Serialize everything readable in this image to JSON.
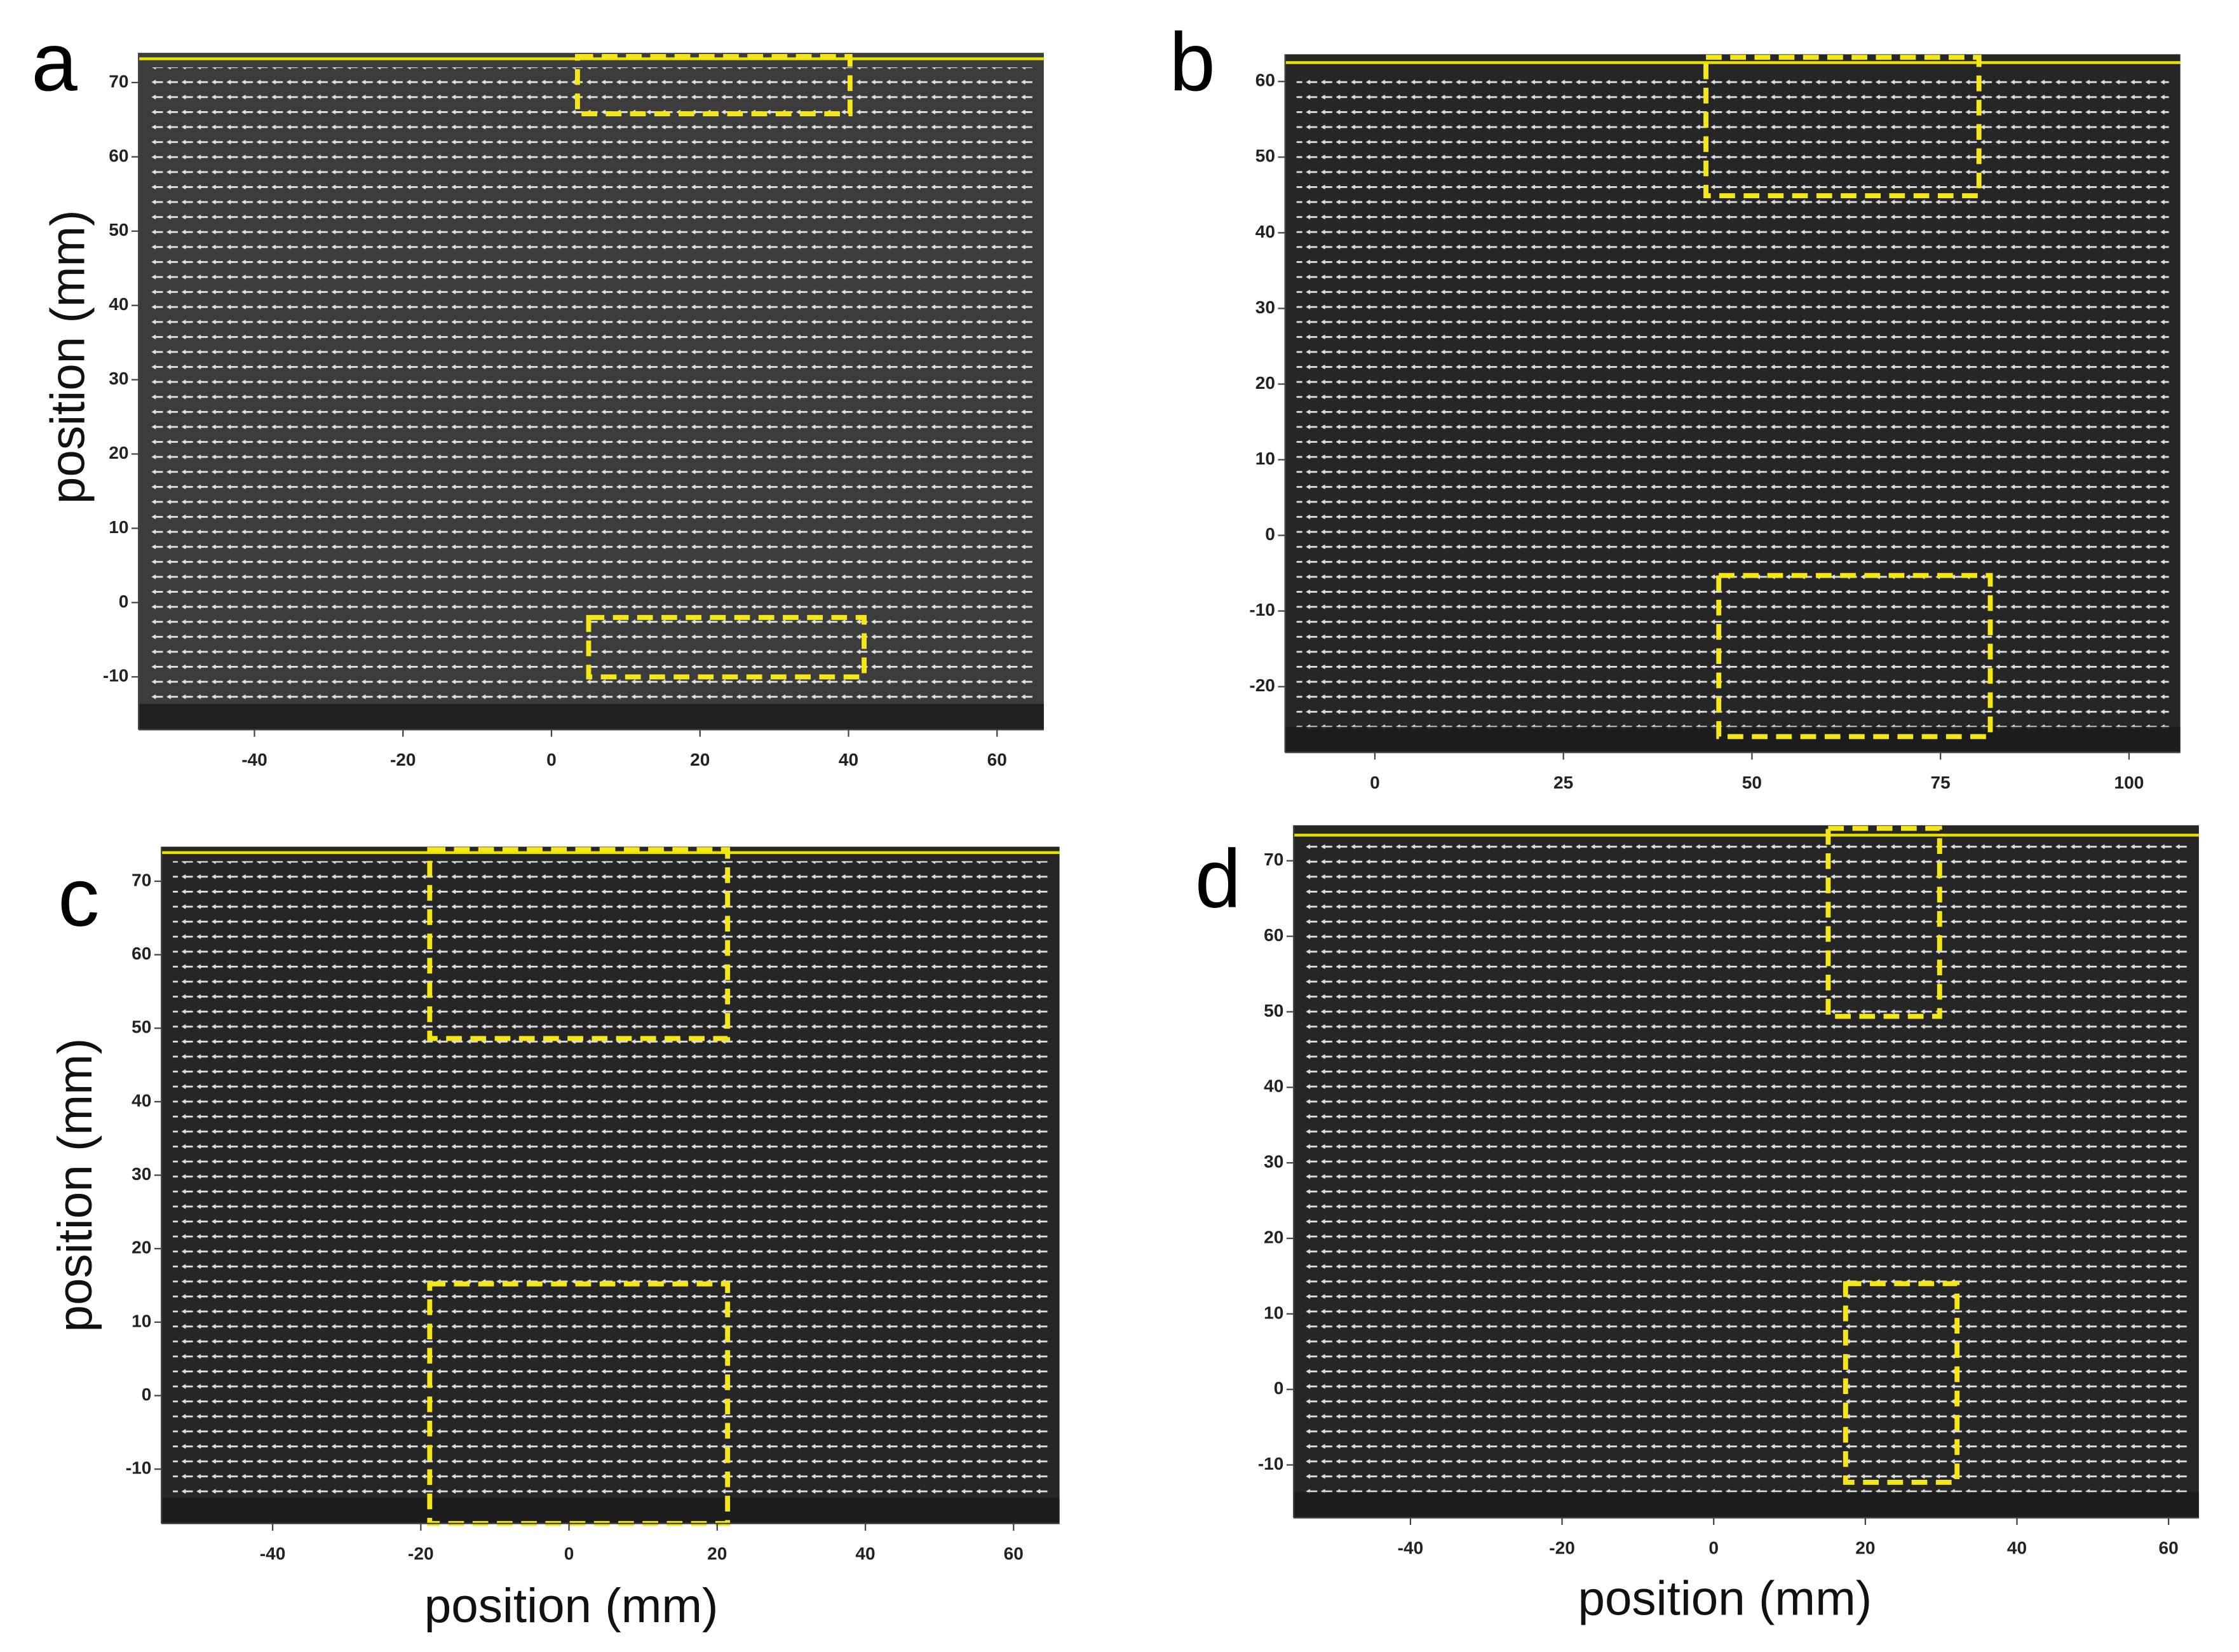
{
  "chart_data": [
    {
      "type": "quiver",
      "panel": "a",
      "ylabel": "position (mm)",
      "xlim": [
        -55.6,
        66.3
      ],
      "ylim": [
        -17.1,
        74
      ],
      "xticks": [
        -40,
        -20,
        0,
        20,
        40,
        60
      ],
      "yticks": [
        -10,
        0,
        10,
        20,
        30,
        40,
        50,
        60,
        70
      ],
      "background": "#3c3c3c",
      "wall_y": 73.2,
      "wall_color": "#e8e000",
      "box_color": "#f5e61a",
      "boxes": [
        {
          "x": [
            3.5,
            40.2
          ],
          "y": [
            65.8,
            73.5
          ]
        },
        {
          "x": [
            5,
            42.1
          ],
          "y": [
            -10,
            -2
          ]
        }
      ]
    },
    {
      "type": "quiver",
      "panel": "b",
      "xlim": [
        -11.9,
        106.8
      ],
      "ylim": [
        -28.7,
        63.6
      ],
      "xticks": [
        0,
        25,
        50,
        75,
        100
      ],
      "yticks": [
        -20,
        -10,
        0,
        10,
        20,
        30,
        40,
        50,
        60
      ],
      "background": "#262626",
      "wall_y": 62.5,
      "wall_color": "#e8e000",
      "box_color": "#f5e61a",
      "boxes": [
        {
          "x": [
            43.9,
            80.1
          ],
          "y": [
            44.9,
            63.2
          ]
        },
        {
          "x": [
            45.6,
            81.6
          ],
          "y": [
            -26.6,
            -5.3
          ]
        }
      ]
    },
    {
      "type": "quiver",
      "panel": "c",
      "ylabel": "position (mm)",
      "xlabel": "position (mm)",
      "xlim": [
        -55,
        66.2
      ],
      "ylim": [
        -17.4,
        74.7
      ],
      "xticks": [
        -40,
        -20,
        0,
        20,
        40,
        60
      ],
      "yticks": [
        -10,
        0,
        10,
        20,
        30,
        40,
        50,
        60,
        70
      ],
      "background": "#262626",
      "wall_y": 73.9,
      "wall_color": "#e8e000",
      "box_color": "#f5e61a",
      "boxes": [
        {
          "x": [
            -18.8,
            21.4
          ],
          "y": [
            48.6,
            74.3
          ]
        },
        {
          "x": [
            -18.8,
            21.4
          ],
          "y": [
            -17.4,
            15.2
          ]
        }
      ]
    },
    {
      "type": "quiver",
      "panel": "d",
      "xlabel": "position (mm)",
      "xlim": [
        -55.4,
        64
      ],
      "ylim": [
        -17,
        74.7
      ],
      "xticks": [
        -40,
        -20,
        0,
        20,
        40,
        60
      ],
      "yticks": [
        -10,
        0,
        10,
        20,
        30,
        40,
        50,
        60,
        70
      ],
      "background": "#262626",
      "wall_y": 73.4,
      "wall_color": "#e8e000",
      "box_color": "#f5e61a",
      "boxes": [
        {
          "x": [
            15.1,
            29.8
          ],
          "y": [
            49.4,
            74.3
          ]
        },
        {
          "x": [
            17.4,
            32.1
          ],
          "y": [
            -12.3,
            14
          ]
        }
      ]
    }
  ]
}
